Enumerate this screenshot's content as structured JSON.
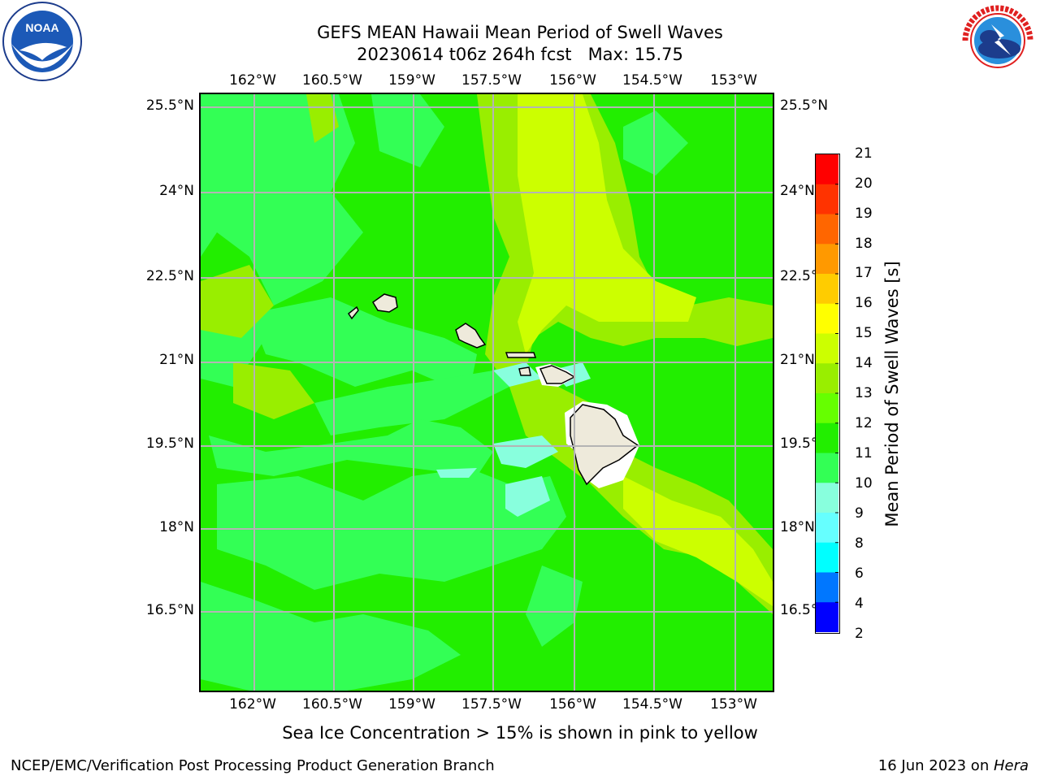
{
  "title": {
    "line1": "GEFS MEAN Hawaii Mean Period of Swell Waves",
    "line2": "20230614 t06z 264h fcst   Max: 15.75"
  },
  "logos": {
    "left": {
      "name": "NOAA",
      "ring_text": "NATIONAL OCEANIC AND ATMOSPHERIC ADMINISTRATION · U.S. DEPARTMENT OF COMMERCE"
    },
    "right": {
      "name": "NATIONAL WEATHER SERVICE"
    }
  },
  "map": {
    "lon_ticks": [
      "162°W",
      "160.5°W",
      "159°W",
      "157.5°W",
      "156°W",
      "154.5°W",
      "153°W"
    ],
    "lat_ticks_left": [
      "25.5°N",
      "24°N",
      "22.5°N",
      "21°N",
      "19.5°N",
      "18°N",
      "16.5°N"
    ],
    "lat_ticks_right": [
      "25.5°N",
      "24°N",
      "22.5°",
      "21°N",
      "19.5°",
      "18°N",
      "16.5°"
    ],
    "colors": {
      "ocean_base": "#22ee00",
      "light_green": "#33ff55",
      "yellow_green": "#ccff00",
      "yellow_green2": "#99ee00",
      "cyan": "#88ffee",
      "land": "#eeeadb",
      "grid": "#b4b4b4"
    }
  },
  "colorbar": {
    "label": "Mean Period of Swell Waves [s]",
    "ticks": [
      "21",
      "20",
      "19",
      "18",
      "17",
      "16",
      "15",
      "14",
      "13",
      "12",
      "11",
      "10",
      "9",
      "8",
      "6",
      "4",
      "2"
    ],
    "colors": [
      "#ff0000",
      "#ff3300",
      "#ff6600",
      "#ff9900",
      "#ffcc00",
      "#ffff00",
      "#ccff00",
      "#99ee00",
      "#66ff00",
      "#22ee00",
      "#33ff55",
      "#88ffdd",
      "#66ffff",
      "#00ffff",
      "#0077ff",
      "#0000ff"
    ]
  },
  "caption": "Sea Ice Concentration > 15% is shown in pink to yellow",
  "footer": {
    "left": "NCEP/EMC/Verification Post Processing Product Generation Branch",
    "right_date": "16 Jun 2023 on ",
    "right_host": "Hera"
  }
}
